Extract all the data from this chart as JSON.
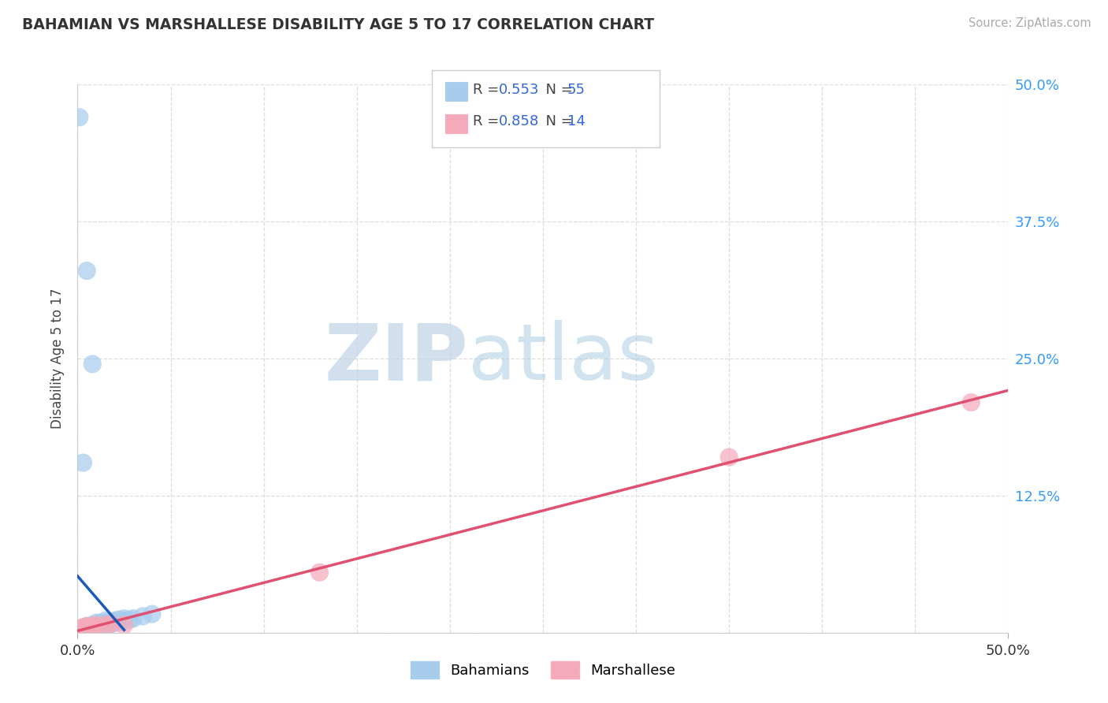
{
  "title": "BAHAMIAN VS MARSHALLESE DISABILITY AGE 5 TO 17 CORRELATION CHART",
  "source_text": "Source: ZipAtlas.com",
  "ylabel": "Disability Age 5 to 17",
  "xlim": [
    0.0,
    0.5
  ],
  "ylim": [
    0.0,
    0.5
  ],
  "bahamian_color": "#A8CCEC",
  "marshallese_color": "#F5AABB",
  "bahamian_line_color": "#1A5CB5",
  "marshallese_line_color": "#E05070",
  "legend_label_blue": "#3366DD",
  "ytick_color": "#3399FF",
  "bahamian_scatter": [
    [
      0.001,
      0.47
    ],
    [
      0.005,
      0.33
    ],
    [
      0.008,
      0.245
    ],
    [
      0.003,
      0.155
    ],
    [
      0.0,
      0.0
    ],
    [
      0.001,
      0.002
    ],
    [
      0.002,
      0.001
    ],
    [
      0.002,
      0.003
    ],
    [
      0.003,
      0.002
    ],
    [
      0.003,
      0.004
    ],
    [
      0.004,
      0.001
    ],
    [
      0.004,
      0.003
    ],
    [
      0.005,
      0.002
    ],
    [
      0.005,
      0.004
    ],
    [
      0.005,
      0.006
    ],
    [
      0.006,
      0.003
    ],
    [
      0.006,
      0.005
    ],
    [
      0.007,
      0.002
    ],
    [
      0.007,
      0.004
    ],
    [
      0.007,
      0.006
    ],
    [
      0.008,
      0.003
    ],
    [
      0.008,
      0.005
    ],
    [
      0.008,
      0.007
    ],
    [
      0.009,
      0.004
    ],
    [
      0.009,
      0.006
    ],
    [
      0.01,
      0.003
    ],
    [
      0.01,
      0.005
    ],
    [
      0.01,
      0.007
    ],
    [
      0.01,
      0.009
    ],
    [
      0.011,
      0.005
    ],
    [
      0.011,
      0.007
    ],
    [
      0.012,
      0.005
    ],
    [
      0.012,
      0.007
    ],
    [
      0.012,
      0.009
    ],
    [
      0.013,
      0.006
    ],
    [
      0.013,
      0.008
    ],
    [
      0.014,
      0.007
    ],
    [
      0.014,
      0.009
    ],
    [
      0.015,
      0.007
    ],
    [
      0.015,
      0.009
    ],
    [
      0.015,
      0.011
    ],
    [
      0.016,
      0.008
    ],
    [
      0.017,
      0.009
    ],
    [
      0.018,
      0.008
    ],
    [
      0.018,
      0.01
    ],
    [
      0.02,
      0.009
    ],
    [
      0.02,
      0.011
    ],
    [
      0.022,
      0.01
    ],
    [
      0.022,
      0.012
    ],
    [
      0.025,
      0.011
    ],
    [
      0.025,
      0.013
    ],
    [
      0.028,
      0.012
    ],
    [
      0.03,
      0.013
    ],
    [
      0.035,
      0.015
    ],
    [
      0.04,
      0.017
    ]
  ],
  "marshallese_scatter": [
    [
      0.0,
      0.003
    ],
    [
      0.002,
      0.004
    ],
    [
      0.003,
      0.005
    ],
    [
      0.004,
      0.004
    ],
    [
      0.005,
      0.006
    ],
    [
      0.006,
      0.005
    ],
    [
      0.008,
      0.006
    ],
    [
      0.01,
      0.007
    ],
    [
      0.015,
      0.007
    ],
    [
      0.018,
      0.008
    ],
    [
      0.025,
      0.007
    ],
    [
      0.13,
      0.055
    ],
    [
      0.35,
      0.16
    ],
    [
      0.48,
      0.21
    ]
  ],
  "watermark_ZIP_color": "#C0D4E8",
  "watermark_atlas_color": "#AACCE0",
  "background_color": "#FFFFFF",
  "grid_color": "#DDDDDD"
}
